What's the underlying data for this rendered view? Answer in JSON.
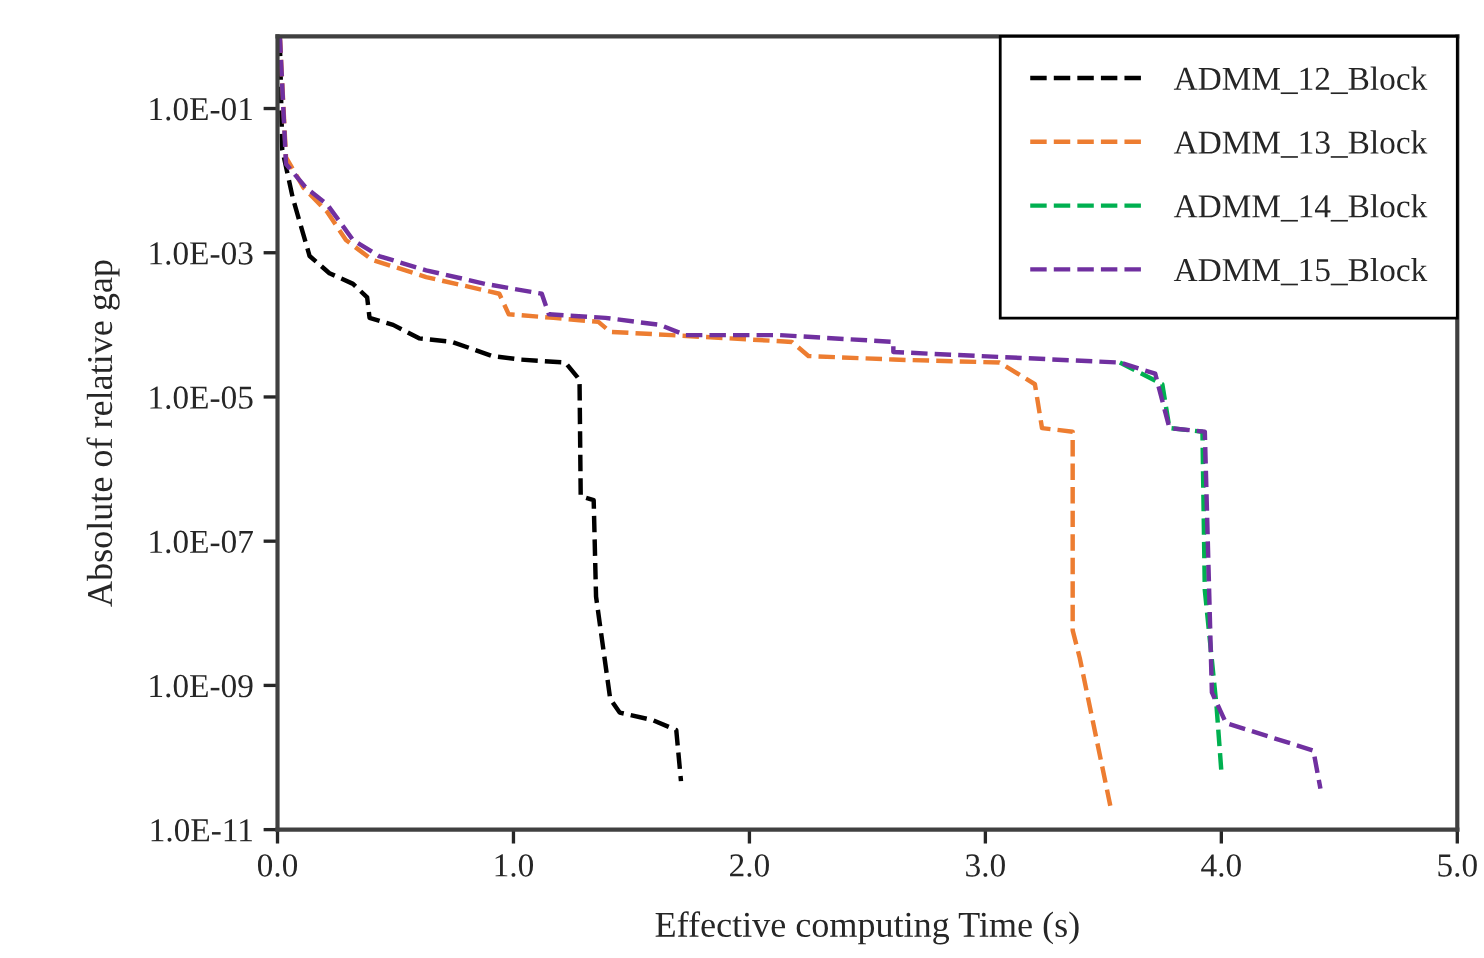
{
  "chart_data": {
    "type": "line",
    "xlabel": "Effective computing Time (s)",
    "ylabel": "Absolute of relative gap",
    "log": "y",
    "xlim": [
      0,
      5
    ],
    "ylim": [
      1e-11,
      1
    ],
    "xticks": [
      {
        "value": 0,
        "label": "0.0"
      },
      {
        "value": 1,
        "label": "1.0"
      },
      {
        "value": 2,
        "label": "2.0"
      },
      {
        "value": 3,
        "label": "3.0"
      },
      {
        "value": 4,
        "label": "4.0"
      },
      {
        "value": 5,
        "label": "5.0"
      }
    ],
    "yticks": [
      {
        "value": 1e-11,
        "label": "1.0E-11"
      },
      {
        "value": 1e-09,
        "label": "1.0E-09"
      },
      {
        "value": 1e-07,
        "label": "1.0E-07"
      },
      {
        "value": 1e-05,
        "label": "1.0E-05"
      },
      {
        "value": 0.001,
        "label": "1.0E-03"
      },
      {
        "value": 0.1,
        "label": "1.0E-01"
      }
    ],
    "legend": "top right",
    "grid": false,
    "line_style": "dashed",
    "marker": "none",
    "series": [
      {
        "name": "ADMM_12_Block",
        "color": "#000000",
        "x": [
          0.01,
          0.02,
          0.065,
          0.136,
          0.22,
          0.32,
          0.38,
          0.39,
          0.49,
          0.6,
          0.74,
          0.91,
          1.03,
          1.22,
          1.27,
          1.28,
          1.285,
          1.34,
          1.35,
          1.41,
          1.45,
          1.59,
          1.69,
          1.71
        ],
        "values": [
          0.9,
          0.027,
          0.0057,
          0.0009,
          0.00052,
          0.00037,
          0.00024,
          0.000125,
          0.0001,
          6.5e-05,
          5.8e-05,
          3.7e-05,
          3.3e-05,
          3e-05,
          1.9e-05,
          1.7e-05,
          4.2e-07,
          3.7e-07,
          1.7e-08,
          6.5e-10,
          4.2e-10,
          3.3e-10,
          2.4e-10,
          4.7e-11
        ]
      },
      {
        "name": "ADMM_13_Block",
        "color": "#ed7d31",
        "x": [
          0.01,
          0.036,
          0.11,
          0.21,
          0.29,
          0.4,
          0.63,
          0.94,
          0.98,
          1.17,
          1.36,
          1.41,
          1.67,
          2.18,
          2.25,
          2.61,
          3.06,
          3.21,
          3.24,
          3.37,
          3.37,
          3.4,
          3.53
        ],
        "values": [
          1,
          0.021,
          0.008,
          0.0037,
          0.0015,
          0.0008,
          0.00046,
          0.00027,
          0.00014,
          0.000125,
          0.00011,
          8e-05,
          7.2e-05,
          5.8e-05,
          3.7e-05,
          3.3e-05,
          3e-05,
          1.5e-05,
          3.7e-06,
          3.3e-06,
          5.8e-09,
          2.4e-09,
          2.1e-11
        ]
      },
      {
        "name": "ADMM_14_Block",
        "color": "#00b050",
        "x": [
          3.57,
          3.75,
          3.78,
          3.92,
          3.93,
          3.98,
          4.0
        ],
        "values": [
          3e-05,
          1.5e-05,
          3.7e-06,
          3.3e-06,
          2.1e-08,
          5e-10,
          6.5e-11
        ]
      },
      {
        "name": "ADMM_15_Block",
        "color": "#7030a0",
        "x": [
          0.01,
          0.036,
          0.12,
          0.21,
          0.32,
          0.43,
          0.63,
          0.88,
          1.12,
          1.15,
          1.39,
          1.62,
          1.73,
          2.13,
          2.61,
          2.61,
          3.57,
          3.72,
          3.78,
          3.93,
          3.96,
          4.02,
          4.39,
          4.42
        ],
        "values": [
          1,
          0.017,
          0.008,
          0.0047,
          0.0015,
          0.0009,
          0.00057,
          0.00037,
          0.00027,
          0.00014,
          0.000125,
          0.0001,
          7.2e-05,
          7.2e-05,
          5.8e-05,
          4.2e-05,
          3e-05,
          2.1e-05,
          3.7e-06,
          3.3e-06,
          8e-10,
          3e-10,
          1.25e-10,
          3.7e-11
        ]
      }
    ]
  }
}
